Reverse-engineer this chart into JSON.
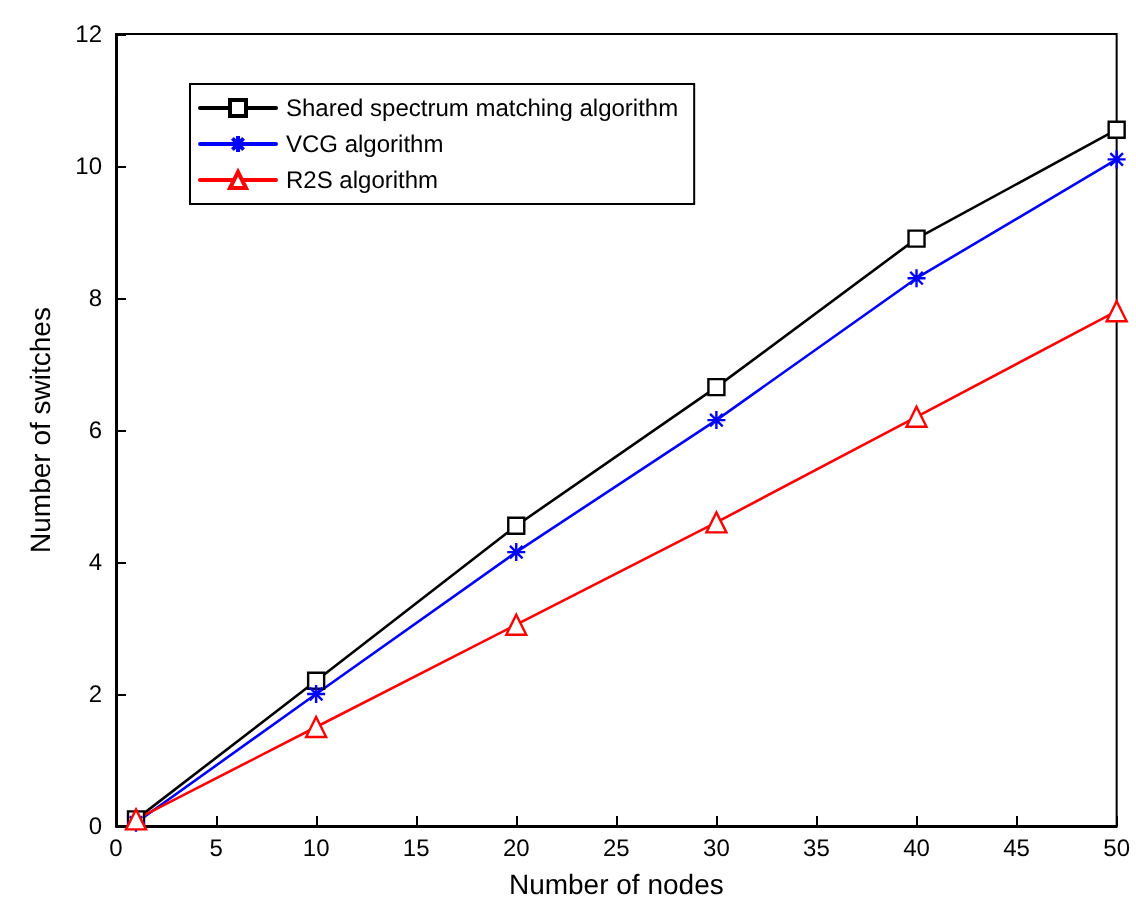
{
  "chart_data": {
    "type": "line",
    "xlabel": "Number of nodes",
    "ylabel": "Number of switches",
    "x": [
      1,
      10,
      20,
      30,
      40,
      50
    ],
    "xlim": [
      0,
      50
    ],
    "xticks": [
      0,
      5,
      10,
      15,
      20,
      25,
      30,
      35,
      40,
      45,
      50
    ],
    "ylim": [
      0,
      12
    ],
    "yticks": [
      0,
      2,
      4,
      6,
      8,
      10,
      12
    ],
    "grid": false,
    "legend": "top left",
    "line_style": "solid",
    "series": [
      {
        "name": "Shared spectrum matching algorithm",
        "color": "#000000",
        "marker": "square",
        "values": [
          0.1,
          2.2,
          4.55,
          6.65,
          8.9,
          10.55
        ]
      },
      {
        "name": "VCG algorithm",
        "color": "#0000ff",
        "marker": "cross",
        "values": [
          0.05,
          2.0,
          4.15,
          6.15,
          8.3,
          10.1
        ]
      },
      {
        "name": "R2S algorithm",
        "color": "#ff0000",
        "marker": "triangle",
        "values": [
          0.1,
          1.5,
          3.05,
          4.6,
          6.2,
          7.8
        ]
      }
    ]
  }
}
